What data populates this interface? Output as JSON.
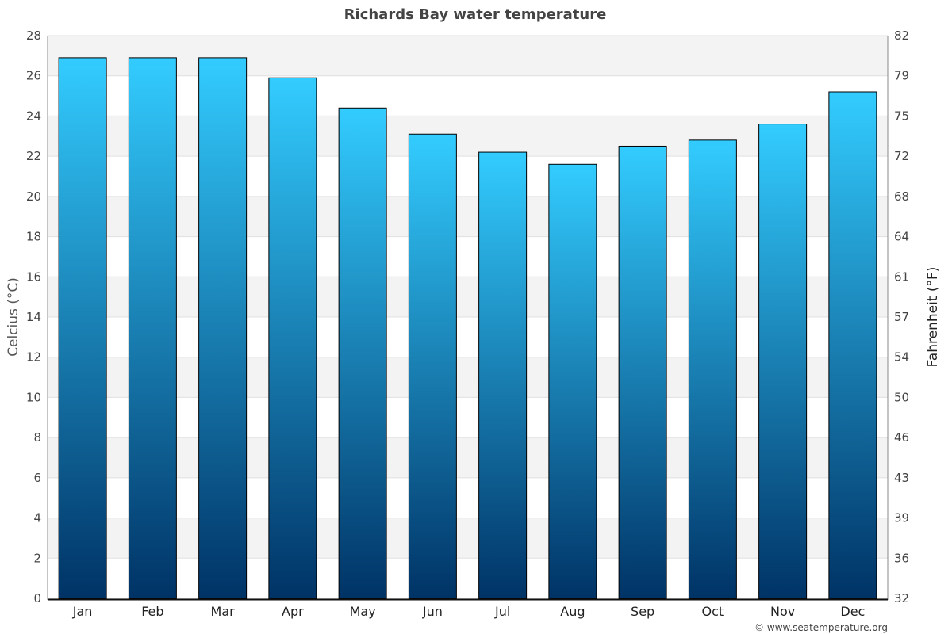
{
  "chart_data": {
    "type": "bar",
    "title": "Richards Bay water temperature",
    "categories": [
      "Jan",
      "Feb",
      "Mar",
      "Apr",
      "May",
      "Jun",
      "Jul",
      "Aug",
      "Sep",
      "Oct",
      "Nov",
      "Dec"
    ],
    "values": [
      26.9,
      26.9,
      26.9,
      25.9,
      24.4,
      23.1,
      22.2,
      21.6,
      22.5,
      22.8,
      23.6,
      25.2
    ],
    "ylabel": "Celcius (°C)",
    "ylabel_right": "Fahrenheit (°F)",
    "ylim": [
      0,
      28
    ],
    "yticks": [
      "0",
      "2",
      "4",
      "6",
      "8",
      "10",
      "12",
      "14",
      "16",
      "18",
      "20",
      "22",
      "24",
      "26",
      "28"
    ],
    "yticks_right": [
      "32",
      "36",
      "39",
      "43",
      "46",
      "50",
      "54",
      "57",
      "61",
      "64",
      "68",
      "72",
      "75",
      "79",
      "82"
    ],
    "grid": true,
    "bar_color_top": "#33ccff",
    "bar_color_bottom": "#003366",
    "credit": "© www.seatemperature.org"
  }
}
